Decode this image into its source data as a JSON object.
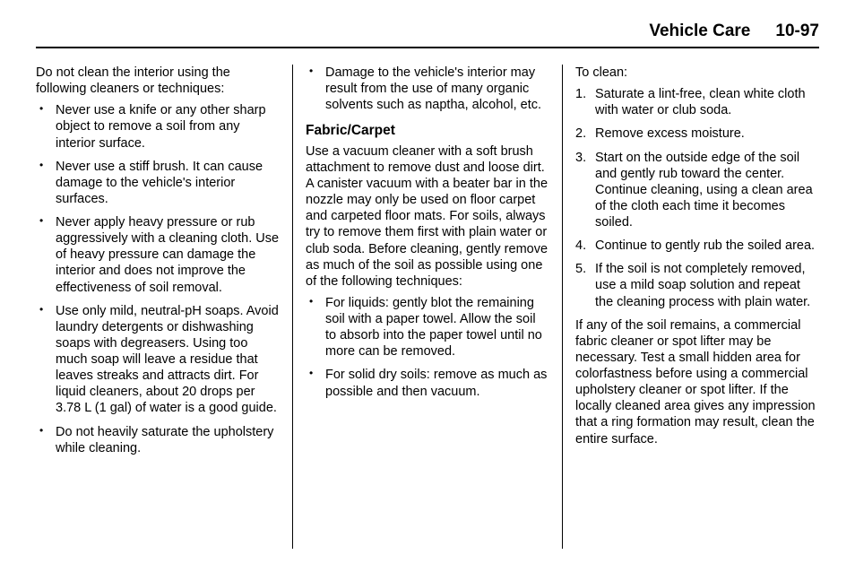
{
  "header": {
    "title": "Vehicle Care",
    "page": "10-97"
  },
  "col1": {
    "intro": "Do not clean the interior using the following cleaners or techniques:",
    "bullets": [
      "Never use a knife or any other sharp object to remove a soil from any interior surface.",
      "Never use a stiff brush. It can cause damage to the vehicle's interior surfaces.",
      "Never apply heavy pressure or rub aggressively with a cleaning cloth. Use of heavy pressure can damage the interior and does not improve the effectiveness of soil removal.",
      "Use only mild, neutral-pH soaps. Avoid laundry detergents or dishwashing soaps with degreasers. Using too much soap will leave a residue that leaves streaks and attracts dirt. For liquid cleaners, about 20 drops per 3.78 L (1 gal) of water is a good guide.",
      "Do not heavily saturate the upholstery while cleaning."
    ]
  },
  "col2": {
    "top_bullet": "Damage to the vehicle's interior may result from the use of many organic solvents such as naptha, alcohol, etc.",
    "heading": "Fabric/Carpet",
    "para": "Use a vacuum cleaner with a soft brush attachment to remove dust and loose dirt. A canister vacuum with a beater bar in the nozzle may only be used on floor carpet and carpeted floor mats. For soils, always try to remove them first with plain water or club soda. Before cleaning, gently remove as much of the soil as possible using one of the following techniques:",
    "bullets": [
      "For liquids: gently blot the remaining soil with a paper towel. Allow the soil to absorb into the paper towel until no more can be removed.",
      "For solid dry soils: remove as much as possible and then vacuum."
    ]
  },
  "col3": {
    "intro": "To clean:",
    "steps": [
      "Saturate a lint-free, clean white cloth with water or club soda.",
      "Remove excess moisture.",
      "Start on the outside edge of the soil and gently rub toward the center. Continue cleaning, using a clean area of the cloth each time it becomes soiled.",
      "Continue to gently rub the soiled area.",
      "If the soil is not completely removed, use a mild soap solution and repeat the cleaning process with plain water."
    ],
    "closing": "If any of the soil remains, a commercial fabric cleaner or spot lifter may be necessary. Test a small hidden area for colorfastness before using a commercial upholstery cleaner or spot lifter. If the locally cleaned area gives any impression that a ring formation may result, clean the entire surface."
  }
}
